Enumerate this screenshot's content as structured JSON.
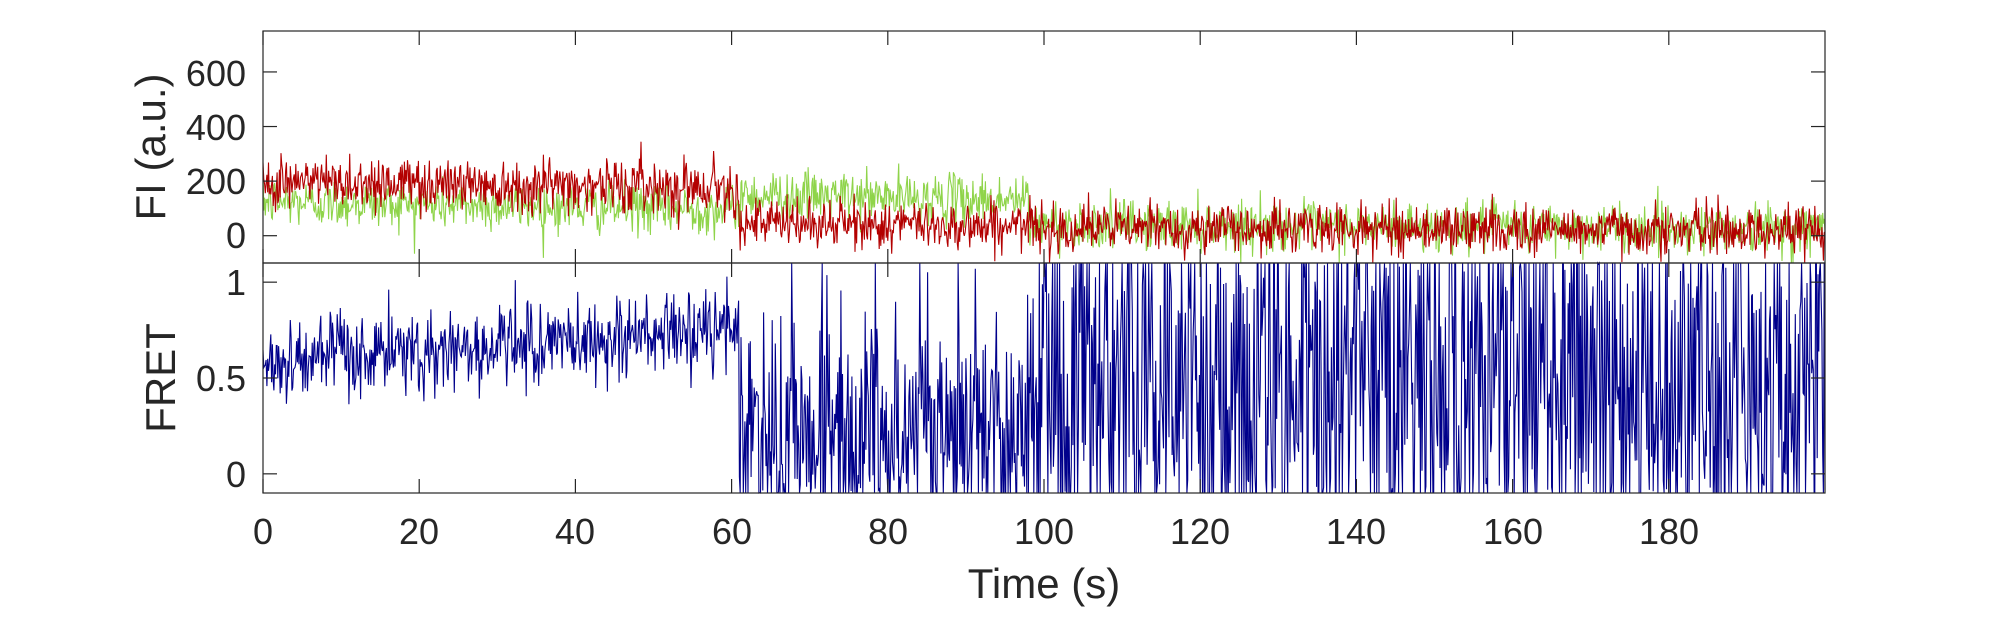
{
  "chart_data": [
    {
      "type": "line",
      "panel": "fluorescence",
      "xlabel": "",
      "ylabel": "FI (a.u.)",
      "xlim": [
        0,
        200
      ],
      "ylim": [
        -100,
        750
      ],
      "yticks": [
        0,
        200,
        400,
        600
      ],
      "xtick_labels_shown": false,
      "grid": false,
      "series": [
        {
          "color": "#8fd44a",
          "segments": [
            {
              "x": [
                0,
                61
              ],
              "mean_start": 125,
              "mean_end": 95,
              "noise": 45
            },
            {
              "x": [
                61,
                98
              ],
              "mean_start": 150,
              "mean_end": 130,
              "noise": 45
            },
            {
              "x": [
                98,
                200
              ],
              "mean_start": 40,
              "mean_end": 25,
              "noise": 45
            }
          ]
        },
        {
          "color": "#b30000",
          "segments": [
            {
              "x": [
                0,
                61
              ],
              "mean_start": 200,
              "mean_end": 180,
              "noise": 50
            },
            {
              "x": [
                61,
                98
              ],
              "mean_start": 45,
              "mean_end": 35,
              "noise": 45
            },
            {
              "x": [
                98,
                200
              ],
              "mean_start": 30,
              "mean_end": 20,
              "noise": 45
            }
          ]
        }
      ]
    },
    {
      "type": "line",
      "panel": "fret",
      "xlabel": "Time (s)",
      "ylabel": "FRET",
      "xlim": [
        0,
        200
      ],
      "ylim": [
        -0.1,
        1.1
      ],
      "yticks": [
        0,
        0.5,
        1
      ],
      "ytick_labels": [
        "0",
        "0.5",
        "1"
      ],
      "xticks": [
        0,
        20,
        40,
        60,
        80,
        100,
        120,
        140,
        160,
        180
      ],
      "xtick_labels": [
        "0",
        "20",
        "40",
        "60",
        "80",
        "100",
        "120",
        "140",
        "160",
        "180"
      ],
      "grid": false,
      "series": [
        {
          "color": "#00008b",
          "segments": [
            {
              "x": [
                0,
                61
              ],
              "mean_start": 0.58,
              "mean_end": 0.75,
              "noise": 0.11
            },
            {
              "x": [
                61,
                98
              ],
              "mean_start": 0.2,
              "mean_end": 0.25,
              "noise": 0.35
            },
            {
              "x": [
                98,
                200
              ],
              "mean_start": 0.5,
              "mean_end": 0.5,
              "noise": 0.65
            }
          ]
        }
      ]
    }
  ],
  "labels": {
    "fi_ylabel": "FI (a.u.)",
    "fret_ylabel": "FRET",
    "xlabel": "Time (s)",
    "fi_ytick": [
      "0",
      "200",
      "400",
      "600"
    ],
    "fret_ytick": [
      "0",
      "0.5",
      "1"
    ],
    "xtick": [
      "0",
      "20",
      "40",
      "60",
      "80",
      "100",
      "120",
      "140",
      "160",
      "180"
    ]
  }
}
